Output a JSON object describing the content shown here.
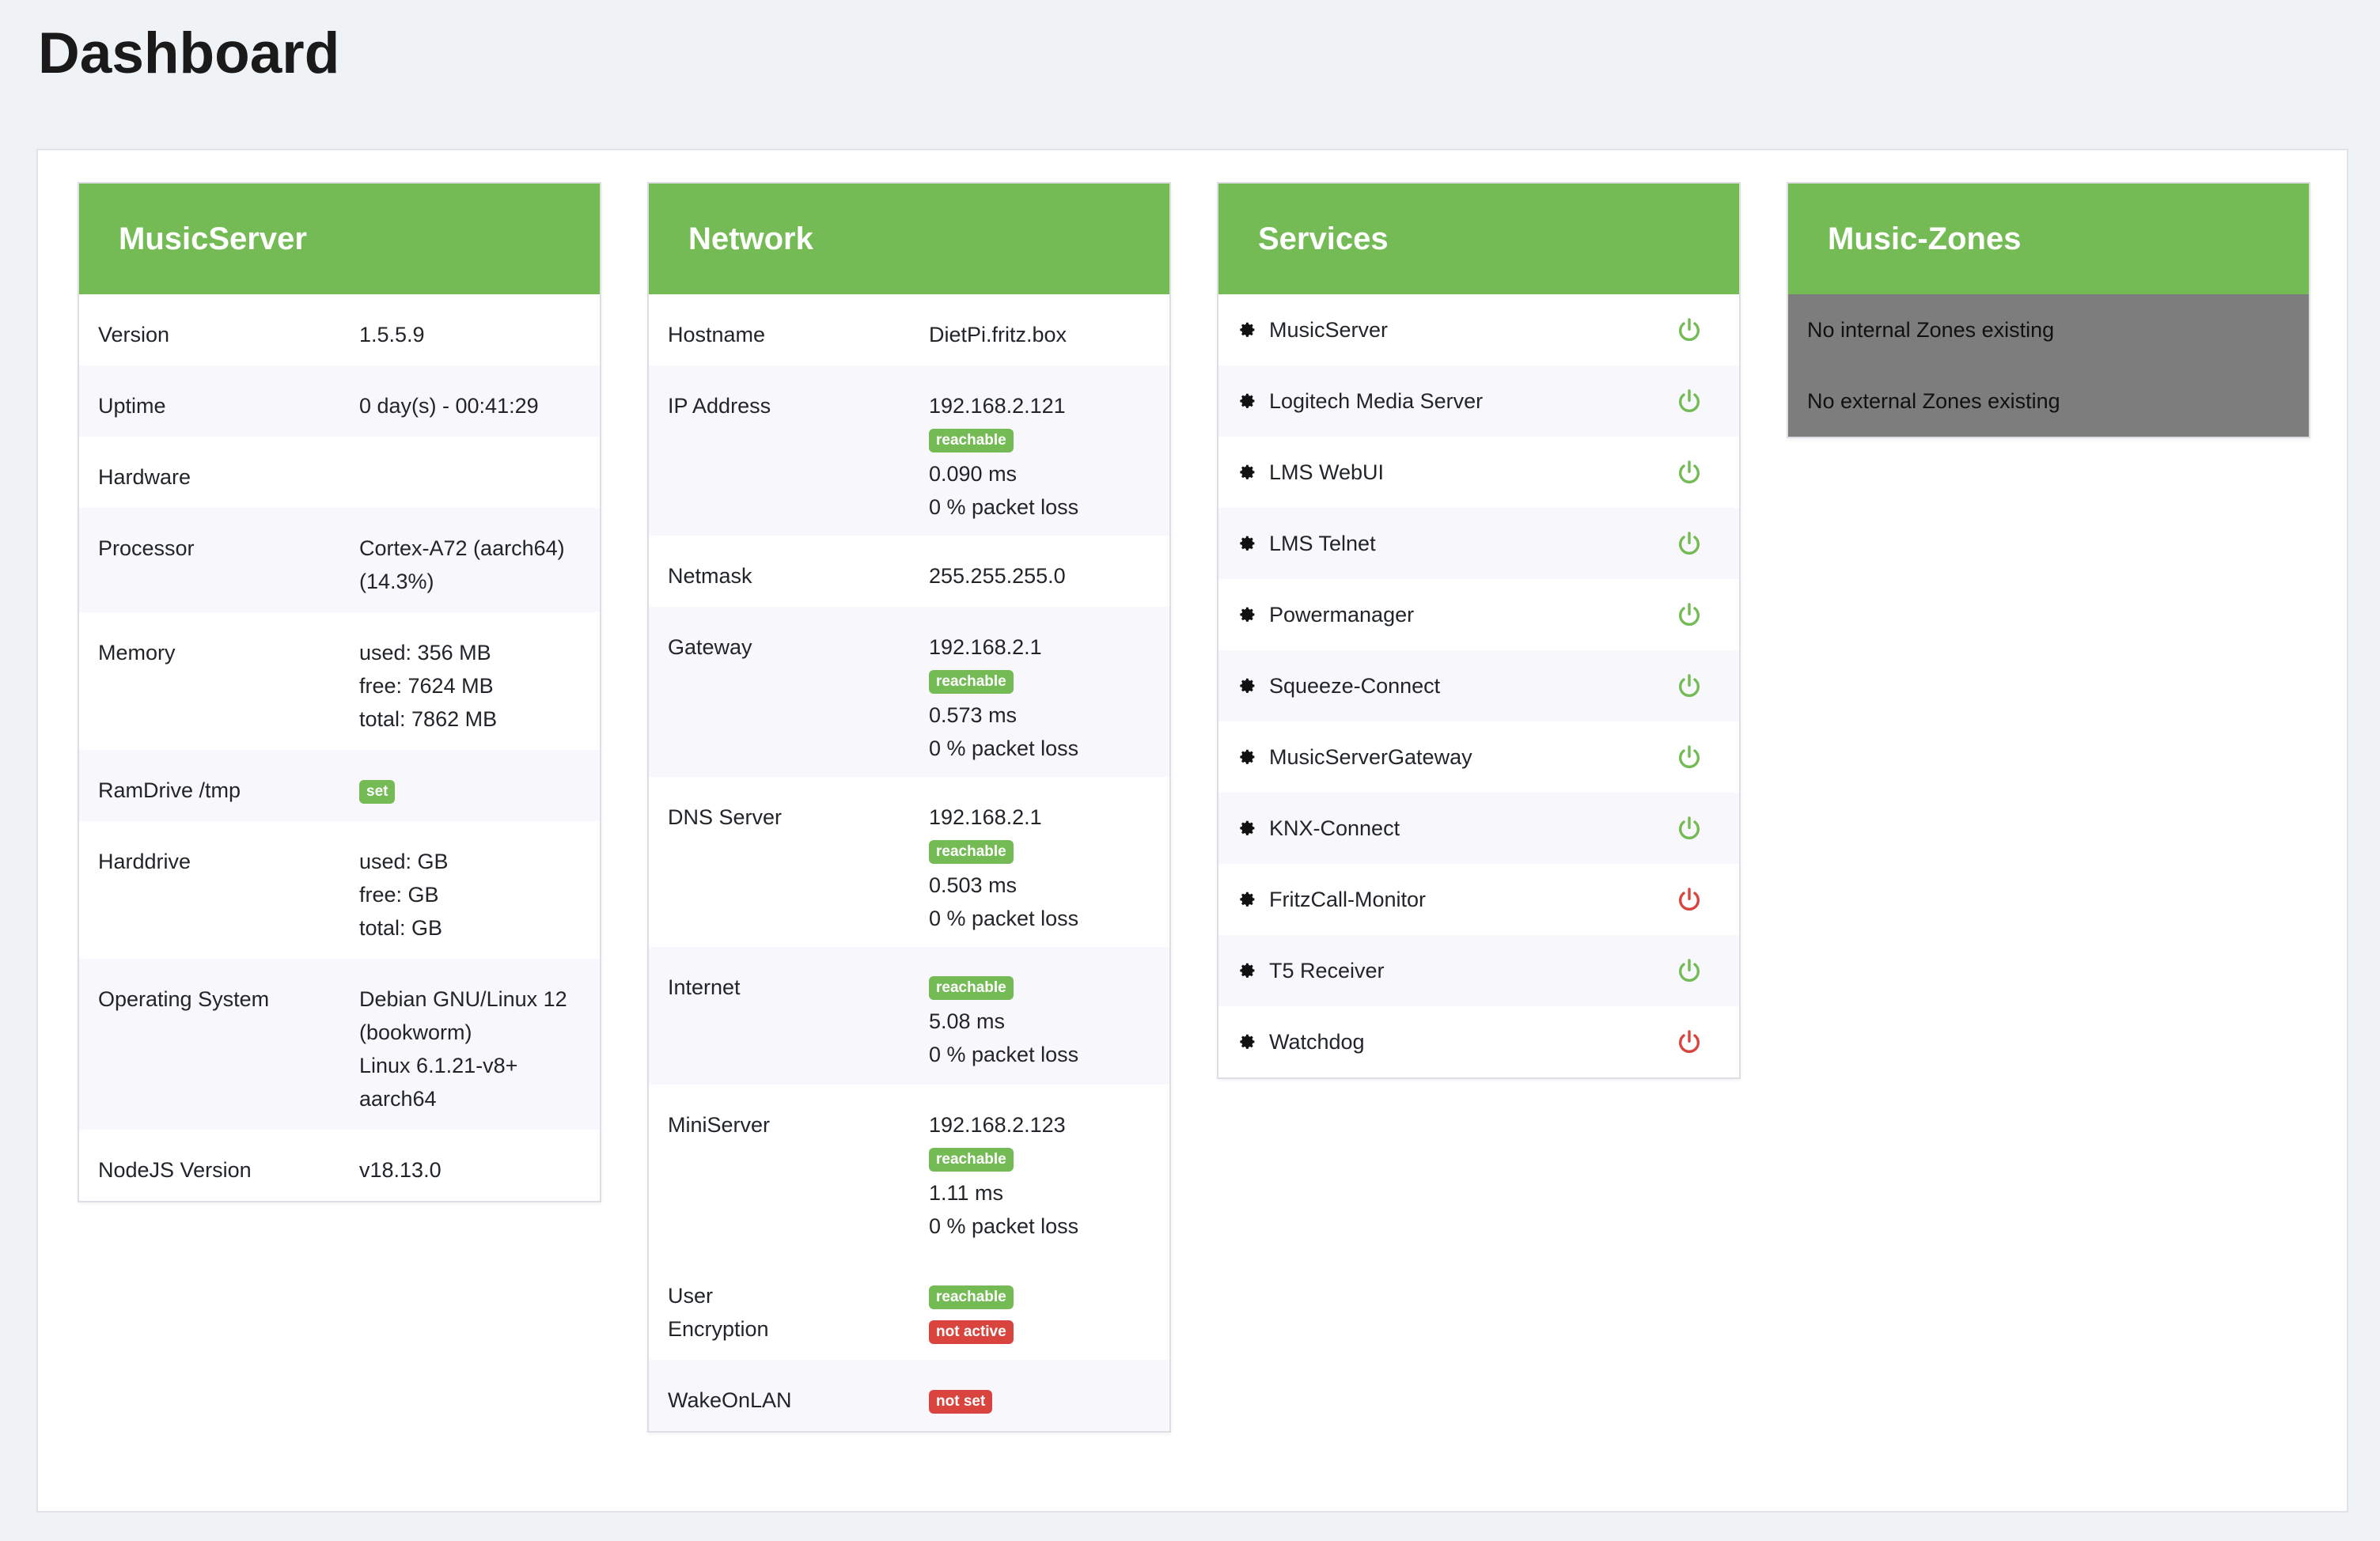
{
  "page": {
    "title": "Dashboard"
  },
  "colors": {
    "accent": "#74bb55",
    "ok": "#74bb55",
    "error": "#d9453e",
    "zone_bg": "#7d7d7d"
  },
  "musicserver": {
    "title": "MusicServer",
    "rows": [
      {
        "label": "Version",
        "lines": [
          "1.5.5.9"
        ]
      },
      {
        "label": "Uptime",
        "lines": [
          "0 day(s) - 00:41:29"
        ]
      },
      {
        "label": "Hardware",
        "lines": [
          ""
        ]
      },
      {
        "label": "Processor",
        "lines": [
          "Cortex-A72 (aarch64)",
          "(14.3%)"
        ]
      },
      {
        "label": "Memory",
        "lines": [
          "used: 356 MB",
          "free: 7624 MB",
          "total: 7862 MB"
        ]
      },
      {
        "label": "RamDrive /tmp",
        "badge": "set"
      },
      {
        "label": "Harddrive",
        "lines": [
          "used: GB",
          "free: GB",
          "total: GB"
        ]
      },
      {
        "label": "Operating System",
        "lines": [
          "Debian GNU/Linux 12",
          "(bookworm)",
          "Linux 6.1.21-v8+",
          "aarch64"
        ]
      },
      {
        "label": "NodeJS Version",
        "lines": [
          "v18.13.0"
        ]
      }
    ]
  },
  "network": {
    "title": "Network",
    "hostname": {
      "label": "Hostname",
      "value": "DietPi.fritz.box"
    },
    "ip": {
      "label": "IP Address",
      "value": "192.168.2.121",
      "badge": "reachable",
      "ping": "0.090 ms",
      "loss": "0 % packet loss"
    },
    "netmask": {
      "label": "Netmask",
      "value": "255.255.255.0"
    },
    "gateway": {
      "label": "Gateway",
      "value": "192.168.2.1",
      "badge": "reachable",
      "ping": "0.573 ms",
      "loss": "0 % packet loss"
    },
    "dns": {
      "label": "DNS Server",
      "value": "192.168.2.1",
      "badge": "reachable",
      "ping": "0.503 ms",
      "loss": "0 % packet loss"
    },
    "internet": {
      "label": "Internet",
      "badge": "reachable",
      "ping": "5.08 ms",
      "loss": "0 % packet loss"
    },
    "miniserver": {
      "label": "MiniServer",
      "value": "192.168.2.123",
      "badge": "reachable",
      "ping": "1.11 ms",
      "loss": "0 % packet loss"
    },
    "user": {
      "label_line1": "User",
      "label_line2": "Encryption",
      "badge1": "reachable",
      "badge2": "not active"
    },
    "wol": {
      "label": "WakeOnLAN",
      "badge": "not set"
    }
  },
  "services": {
    "title": "Services",
    "items": [
      {
        "name": "MusicServer",
        "status": "on"
      },
      {
        "name": "Logitech Media Server",
        "status": "on"
      },
      {
        "name": "LMS WebUI",
        "status": "on"
      },
      {
        "name": "LMS Telnet",
        "status": "on"
      },
      {
        "name": "Powermanager",
        "status": "on"
      },
      {
        "name": "Squeeze-Connect",
        "status": "on"
      },
      {
        "name": "MusicServerGateway",
        "status": "on"
      },
      {
        "name": "KNX-Connect",
        "status": "on"
      },
      {
        "name": "FritzCall-Monitor",
        "status": "off"
      },
      {
        "name": "T5 Receiver",
        "status": "on"
      },
      {
        "name": "Watchdog",
        "status": "off"
      }
    ],
    "icons": {
      "item": "gear-icon",
      "status": "power-icon"
    }
  },
  "zones": {
    "title": "Music-Zones",
    "internal": "No internal Zones existing",
    "external": "No external Zones existing"
  }
}
